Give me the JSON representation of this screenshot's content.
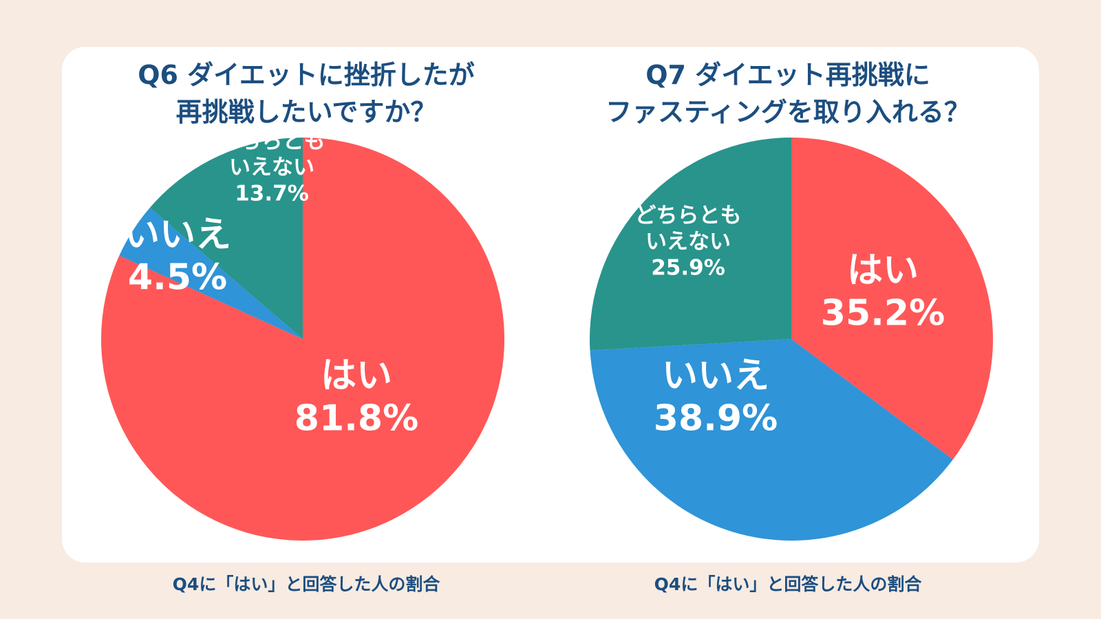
{
  "chart_data": [
    {
      "type": "pie",
      "title_lines": [
        "Q6 ダイエットに挫折したが",
        "再挑戦したいですか？"
      ],
      "note": "Q4に「はい」と回答した人の割合",
      "slices": [
        {
          "label_lines": [
            "はい"
          ],
          "value": 81.8,
          "value_label": "81.8%",
          "color": "#ff5757"
        },
        {
          "label_lines": [
            "いいえ"
          ],
          "value": 4.5,
          "value_label": "4.5%",
          "color": "#2f94d8"
        },
        {
          "label_lines": [
            "どちらとも",
            "いえない"
          ],
          "value": 13.7,
          "value_label": "13.7%",
          "color": "#28948c"
        }
      ]
    },
    {
      "type": "pie",
      "title_lines": [
        "Q7 ダイエット再挑戦に",
        "ファスティングを取り入れる？"
      ],
      "note": "Q4に「はい」と回答した人の割合",
      "slices": [
        {
          "label_lines": [
            "はい"
          ],
          "value": 35.2,
          "value_label": "35.2%",
          "color": "#ff5757"
        },
        {
          "label_lines": [
            "いいえ"
          ],
          "value": 38.9,
          "value_label": "38.9%",
          "color": "#2f94d8"
        },
        {
          "label_lines": [
            "どちらとも",
            "いえない"
          ],
          "value": 25.9,
          "value_label": "25.9%",
          "color": "#28948c"
        }
      ]
    }
  ]
}
